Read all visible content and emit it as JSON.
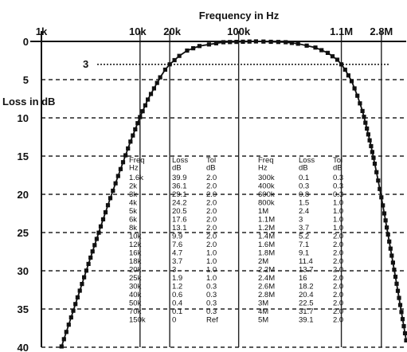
{
  "chart_data": {
    "type": "line",
    "title": "Frequency in Hz",
    "ylabel": "Loss  in dB",
    "x_scale": "log",
    "xlim": [
      1000,
      5000000
    ],
    "ylim": [
      0,
      40
    ],
    "y_inverted": true,
    "x_ticks": [
      "1k",
      "10k",
      "20k",
      "100k",
      "1.1M",
      "2.8M"
    ],
    "x_tick_values": [
      1000,
      10000,
      20000,
      100000,
      1100000,
      2800000
    ],
    "y_ticks": [
      "0",
      "5",
      "10",
      "15",
      "20",
      "25",
      "30",
      "35",
      "40"
    ],
    "y_tick_values": [
      0,
      5,
      10,
      15,
      20,
      25,
      30,
      35,
      40
    ],
    "grid": "dashed",
    "reference_line": {
      "label": "3",
      "y": 3
    },
    "marker": "square",
    "series": [
      {
        "x": [
          1600,
          2000,
          3000,
          4000,
          5000,
          6000,
          8000,
          10000,
          12000,
          16000,
          18000,
          20000,
          25000,
          30000,
          40000,
          50000,
          70000,
          150000,
          300000,
          400000,
          600000,
          800000,
          1000000,
          1100000,
          1200000,
          1400000,
          1600000,
          1800000,
          2000000,
          2200000,
          2400000,
          2600000,
          2800000,
          3000000,
          4000000,
          5000000
        ],
        "y": [
          39.9,
          36.1,
          29.1,
          24.2,
          20.5,
          17.6,
          13.1,
          9.9,
          7.6,
          4.7,
          3.7,
          3,
          1.9,
          1.2,
          0.6,
          0.4,
          0.1,
          0,
          0.1,
          0.3,
          0.8,
          1.5,
          2.4,
          3,
          3.7,
          5.2,
          7.1,
          9.1,
          11.4,
          13.7,
          16,
          18.2,
          20.4,
          22.5,
          31.7,
          39.1
        ]
      }
    ],
    "table": {
      "headers": [
        [
          "Freq",
          "Hz"
        ],
        [
          "Loss",
          "dB"
        ],
        [
          "Tol",
          "dB"
        ],
        [
          "Freq",
          "Hz"
        ],
        [
          "Loss",
          "dB"
        ],
        [
          "Tol",
          "dB"
        ]
      ],
      "rows": [
        [
          "1.6k",
          "39.9",
          "2.0",
          "300k",
          "0.1",
          "0.3"
        ],
        [
          "2k",
          "36.1",
          "2.0",
          "400k",
          "0.3",
          "0.3"
        ],
        [
          "3k",
          "29.1",
          "2.0",
          "600k",
          "0.8",
          "0.3"
        ],
        [
          "4k",
          "24.2",
          "2.0",
          "800k",
          "1.5",
          "1.0"
        ],
        [
          "5k",
          "20.5",
          "2.0",
          "1M",
          "2.4",
          "1.0"
        ],
        [
          "6k",
          "17.6",
          "2.0",
          "1.1M",
          "3",
          "1.0"
        ],
        [
          "8k",
          "13.1",
          "2.0",
          "1.2M",
          "3.7",
          "1.0"
        ],
        [
          "10k",
          "9.9",
          "2.0",
          "1.4M",
          "5.2",
          "2.0"
        ],
        [
          "12k",
          "7.6",
          "2.0",
          "1.6M",
          "7.1",
          "2.0"
        ],
        [
          "16k",
          "4.7",
          "1.0",
          "1.8M",
          "9.1",
          "2.0"
        ],
        [
          "18k",
          "3.7",
          "1.0",
          "2M",
          "11.4",
          "2.0"
        ],
        [
          "20k",
          "3",
          "1.0",
          "2.2M",
          "13.7",
          "2.0"
        ],
        [
          "25k",
          "1.9",
          "1.0",
          "2.4M",
          "16",
          "2.0"
        ],
        [
          "30k",
          "1.2",
          "0.3",
          "2.6M",
          "18.2",
          "2.0"
        ],
        [
          "40k",
          "0.6",
          "0.3",
          "2.8M",
          "20.4",
          "2.0"
        ],
        [
          "50k",
          "0.4",
          "0.3",
          "3M",
          "22.5",
          "2.0"
        ],
        [
          "70k",
          "0.1",
          "0.3",
          "4M",
          "31.7",
          "2.0"
        ],
        [
          "150k",
          "0",
          "Ref",
          "5M",
          "39.1",
          "2.0"
        ]
      ]
    }
  }
}
